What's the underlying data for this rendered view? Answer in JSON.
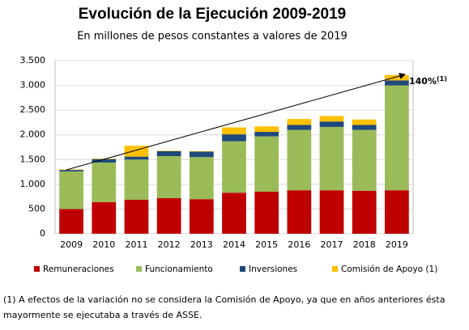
{
  "chart_data": {
    "type": "stacked-bar",
    "title": "Evolución de la Ejecución 2009-2019",
    "subtitle": "En millones de pesos constantes a valores de 2019",
    "categories": [
      "2009",
      "2010",
      "2011",
      "2012",
      "2013",
      "2014",
      "2015",
      "2016",
      "2017",
      "2018",
      "2019"
    ],
    "series": [
      {
        "name": "Remuneraciones",
        "color": "#c00000",
        "values": [
          500,
          640,
          690,
          720,
          700,
          830,
          850,
          880,
          880,
          870,
          880
        ]
      },
      {
        "name": "Funcionamiento",
        "color": "#9bbb59",
        "values": [
          760,
          800,
          810,
          850,
          850,
          1040,
          1120,
          1220,
          1280,
          1230,
          2120
        ]
      },
      {
        "name": "Inversiones",
        "color": "#1f497d",
        "values": [
          30,
          70,
          60,
          100,
          110,
          140,
          90,
          100,
          110,
          100,
          100
        ]
      },
      {
        "name": "Comisión de Apoyo (1)",
        "color": "#ffc000",
        "values": [
          10,
          10,
          220,
          10,
          10,
          140,
          110,
          120,
          110,
          110,
          110
        ]
      }
    ],
    "ylim": [
      0,
      3500
    ],
    "yticks": [
      0,
      500,
      {
        "value": 1000,
        "label": "1.000"
      },
      {
        "value": 1500,
        "label": "1.500"
      },
      {
        "value": 2000,
        "label": "2.000"
      },
      {
        "value": 2500,
        "label": "2.500"
      },
      {
        "value": 3000,
        "label": "3.000"
      },
      {
        "value": 3500,
        "label": "3.500"
      }
    ],
    "grid": true,
    "annotation": {
      "text": "140%",
      "superscript": "(1)"
    },
    "footnote": [
      "(1) A efectos de la variación no se considera la Comisión de Apoyo, ya que en años anteriores ésta",
      "mayormente se ejecutaba a través de ASSE."
    ]
  }
}
